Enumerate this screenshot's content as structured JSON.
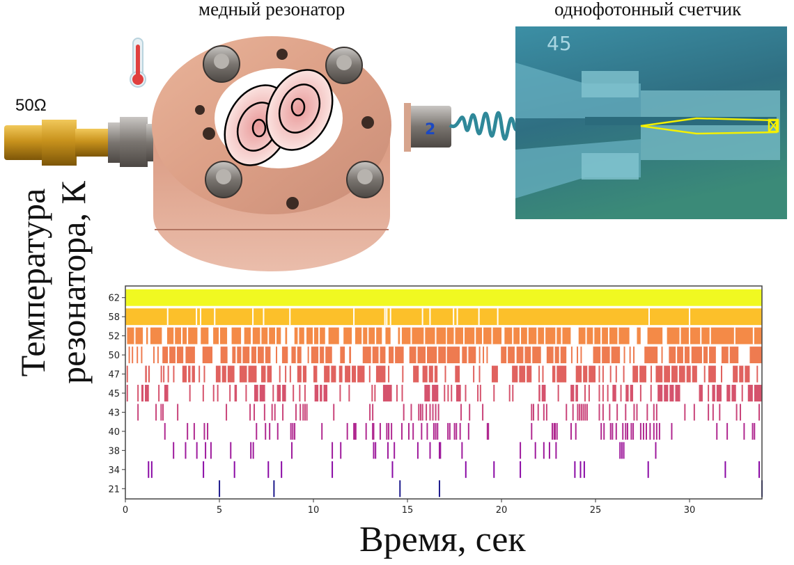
{
  "figure": {
    "resonator_title": "медный резонатор",
    "counter_title": "однофотонный счетчик",
    "impedance_label": "50Ω",
    "connector_number": "2",
    "chip_number": "45",
    "icons": [
      "thermometer-icon",
      "photon-wave-icon"
    ]
  },
  "chart_data": {
    "type": "raster",
    "xlabel": "Время, сек",
    "ylabel_lines": [
      "Температура",
      "резонатора, К"
    ],
    "xlim": [
      0,
      33.85
    ],
    "xticks": [
      0,
      5,
      10,
      15,
      20,
      25,
      30
    ],
    "grid": false,
    "rows": [
      {
        "label": "62",
        "color": "#f0f921",
        "events": [
          [
            0,
            33.85
          ]
        ],
        "gaps": []
      },
      {
        "label": "58",
        "color": "#fcc02a",
        "events": [
          [
            0,
            33.85
          ]
        ],
        "gaps": [
          2.25,
          3.78,
          4.0,
          4.75,
          6.78,
          7.35,
          8.75,
          12.15,
          13.8,
          13.9,
          14.1,
          15.8,
          16.2,
          17.45,
          17.65,
          18.8,
          19.8,
          27.85,
          30.0
        ]
      },
      {
        "label": "52",
        "color": "#f48a47",
        "events": [
          [
            0.09,
            0.93
          ],
          [
            1.11,
            1.2
          ],
          [
            1.33,
            1.94
          ],
          [
            2.22,
            3.83
          ],
          [
            4.01,
            4.42
          ],
          [
            4.67,
            5.41
          ],
          [
            5.65,
            6.15
          ],
          [
            6.32,
            6.67
          ],
          [
            6.77,
            8.27
          ],
          [
            8.5,
            8.6
          ],
          [
            8.99,
            9.51
          ],
          [
            9.63,
            10.62
          ],
          [
            10.8,
            11.36
          ],
          [
            11.6,
            12.04
          ],
          [
            12.22,
            13.64
          ],
          [
            13.83,
            14.1
          ],
          [
            14.5,
            14.6
          ],
          [
            14.7,
            17.04
          ],
          [
            17.1,
            20.0
          ],
          [
            20.16,
            23.68
          ],
          [
            24.1,
            26.8
          ],
          [
            27.2,
            27.4
          ],
          [
            27.76,
            28.56
          ],
          [
            28.8,
            33.85
          ]
        ],
        "gaps": [
          0.5,
          2.6,
          3.0,
          3.3,
          5.0,
          7.2,
          7.6,
          8.0,
          9.2,
          10.0,
          10.3,
          12.6,
          12.9,
          13.3,
          15.2,
          15.9,
          16.5,
          17.5,
          18.0,
          18.6,
          19.0,
          19.5,
          20.6,
          21.0,
          21.4,
          21.9,
          22.3,
          22.9,
          23.2,
          24.5,
          24.9,
          25.3,
          25.7,
          26.2,
          29.5,
          30.0,
          30.6,
          31.1,
          32.4,
          33.4
        ]
      },
      {
        "label": "50",
        "color": "#ee7b50",
        "events": [
          [
            0.17,
            0.21
          ],
          [
            0.34,
            0.38
          ],
          [
            0.6,
            0.64
          ],
          [
            0.83,
            0.87
          ],
          [
            1.48,
            1.52
          ],
          [
            1.7,
            1.75
          ],
          [
            1.97,
            3.08
          ],
          [
            3.2,
            3.7
          ],
          [
            4.1,
            4.63
          ],
          [
            5.06,
            5.43
          ],
          [
            5.68,
            6.6
          ],
          [
            6.7,
            7.72
          ],
          [
            8.0,
            8.04
          ],
          [
            8.33,
            8.64
          ],
          [
            8.83,
            9.36
          ],
          [
            9.69,
            9.73
          ],
          [
            9.88,
            10.99
          ],
          [
            11.42,
            11.67
          ],
          [
            11.9,
            12.0
          ],
          [
            12.62,
            13.83
          ],
          [
            14.0,
            14.8
          ],
          [
            15.1,
            17.04
          ],
          [
            17.1,
            17.78
          ],
          [
            17.9,
            18.64
          ],
          [
            18.8,
            18.85
          ],
          [
            19.0,
            19.05
          ],
          [
            19.2,
            19.25
          ],
          [
            19.97,
            20.7
          ],
          [
            20.8,
            22.1
          ],
          [
            22.4,
            23.45
          ],
          [
            23.7,
            23.75
          ],
          [
            24.0,
            24.05
          ],
          [
            24.2,
            24.25
          ],
          [
            24.87,
            26.3
          ],
          [
            26.5,
            26.55
          ],
          [
            26.8,
            26.85
          ],
          [
            27.0,
            27.05
          ],
          [
            27.6,
            28.3
          ],
          [
            28.5,
            28.55
          ],
          [
            28.9,
            30.0
          ],
          [
            30.1,
            31.4
          ],
          [
            31.7,
            32.6
          ],
          [
            33.2,
            33.85
          ]
        ],
        "gaps": [
          2.3,
          2.7,
          5.9,
          6.2,
          7.0,
          7.4,
          9.1,
          10.3,
          10.6,
          13.1,
          13.5,
          14.3,
          15.5,
          16.0,
          16.6,
          18.2,
          20.3,
          21.2,
          21.6,
          22.8,
          23.1,
          25.3,
          25.8,
          29.3,
          29.7,
          30.7,
          31.0,
          32.1
        ]
      },
      {
        "label": "47",
        "color": "#e0625f",
        "events": [
          0.1,
          [
            1.05,
            1.3
          ],
          1.91,
          2.04,
          2.28,
          2.57,
          [
            3.03,
            3.7
          ],
          3.93,
          4.2,
          [
            4.81,
            5.8
          ],
          [
            6.07,
            6.98
          ],
          [
            7.22,
            7.78
          ],
          8.21,
          8.52,
          8.77,
          [
            9.14,
            9.63
          ],
          [
            10.0,
            10.2
          ],
          [
            10.56,
            11.2
          ],
          [
            11.36,
            11.54
          ],
          [
            11.67,
            12.72
          ],
          12.99,
          [
            13.33,
            13.83
          ],
          14.0,
          14.75,
          [
            15.3,
            15.6
          ],
          [
            15.8,
            16.6
          ],
          [
            16.98,
            17.05
          ],
          [
            17.53,
            17.78
          ],
          18.52,
          18.83,
          [
            19.48,
            19.81
          ],
          [
            20.56,
            21.6
          ],
          22.0,
          22.2,
          [
            22.7,
            23.45
          ],
          [
            23.95,
            25.0
          ],
          25.2,
          25.4,
          25.8,
          26.1,
          26.5,
          [
            26.97,
            27.7
          ],
          27.96,
          [
            28.2,
            30.4
          ],
          30.8,
          [
            31.0,
            31.4
          ],
          31.7,
          [
            32.3,
            33.2
          ],
          33.6
        ],
        "gaps": [
          1.18,
          3.3,
          3.5,
          5.1,
          5.4,
          6.5,
          7.5,
          9.4,
          10.9,
          12.0,
          12.3,
          15.0,
          16.1,
          16.4,
          20.9,
          21.3,
          22.9,
          24.3,
          24.6,
          27.3,
          28.6,
          29.0,
          29.4,
          29.8,
          30.1,
          32.6,
          32.9
        ]
      },
      {
        "label": "45",
        "color": "#d5536d",
        "events": [
          0.1,
          0.67,
          [
            0.85,
            1.25
          ],
          1.78,
          [
            2.07,
            2.28
          ],
          3.43,
          4.14,
          4.69,
          4.91,
          5.56,
          [
            5.8,
            5.93
          ],
          6.42,
          [
            6.85,
            7.43
          ],
          7.86,
          [
            8.06,
            8.54
          ],
          8.93,
          9.27,
          9.55,
          [
            10.06,
            10.74
          ],
          11.42,
          11.9,
          13.12,
          13.27,
          [
            13.7,
            14.17
          ],
          14.44,
          14.72,
          [
            15.9,
            16.2
          ],
          [
            16.3,
            16.64
          ],
          16.97,
          17.16,
          17.34,
          [
            17.59,
            17.84
          ],
          18.09,
          18.74,
          18.88,
          19.6,
          20.43,
          20.6,
          [
            21.97,
            22.35
          ],
          23.02,
          [
            23.67,
            24.07
          ],
          24.44,
          24.66,
          25.2,
          25.4,
          25.65,
          [
            25.9,
            26.1
          ],
          26.35,
          [
            26.6,
            27.0
          ],
          27.4,
          27.95,
          [
            28.3,
            29.5
          ],
          [
            30.5,
            30.7
          ],
          31.0,
          [
            31.2,
            31.7
          ],
          [
            31.97,
            32.47
          ],
          32.8,
          [
            33.1,
            33.85
          ]
        ],
        "gaps": [
          1.0,
          7.1,
          8.3,
          10.3,
          10.5,
          22.1,
          23.9,
          26.8,
          28.6,
          28.9,
          29.2,
          31.4,
          32.2,
          33.4
        ]
      },
      {
        "label": "43",
        "color": "#c9447a",
        "events": [
          0.67,
          1.63,
          1.9,
          2.0,
          2.78,
          5.37,
          6.63,
          6.85,
          7.4,
          7.8,
          7.95,
          8.37,
          9.07,
          9.3,
          9.45,
          9.55,
          9.65,
          11.08,
          13.0,
          13.15,
          14.8,
          15.2,
          15.6,
          15.7,
          15.8,
          16.0,
          16.2,
          16.35,
          16.5,
          16.65,
          17.85,
          18.3,
          19.0,
          21.6,
          21.7,
          21.95,
          22.25,
          22.4,
          23.45,
          23.8,
          24.05,
          24.15,
          24.25,
          24.35,
          24.45,
          24.55,
          25.2,
          25.4,
          25.75,
          26.15,
          26.6,
          27.05,
          27.2,
          27.75,
          28.1,
          28.25,
          29.75,
          30.25,
          31.0,
          31.25,
          31.6,
          32.5,
          32.7,
          33.7
        ],
        "gaps": []
      },
      {
        "label": "40",
        "color": "#b02990",
        "events": [
          2.1,
          3.3,
          3.66,
          4.2,
          4.37,
          6.97,
          7.45,
          7.67,
          8.1,
          8.8,
          8.9,
          9.0,
          10.45,
          11.8,
          12.15,
          12.2,
          12.25,
          12.8,
          13.15,
          13.2,
          13.55,
          13.9,
          14.0,
          14.15,
          14.7,
          15.07,
          15.3,
          15.75,
          16.05,
          16.4,
          16.5,
          16.6,
          17.15,
          17.25,
          17.5,
          17.6,
          17.8,
          18.25,
          19.25,
          19.3,
          21.6,
          22.7,
          22.8,
          22.85,
          22.95,
          23.7,
          23.95,
          25.3,
          25.45,
          25.8,
          25.9,
          26.1,
          26.45,
          26.6,
          26.7,
          26.9,
          27.0,
          27.4,
          27.55,
          27.7,
          27.9,
          28.1,
          28.25,
          28.4,
          29.05,
          31.45,
          32.0,
          32.9,
          33.35,
          33.45
        ],
        "gaps": []
      },
      {
        "label": "38",
        "color": "#9e1a9c",
        "events": [
          2.56,
          3.2,
          3.8,
          4.26,
          4.55,
          5.6,
          6.67,
          6.8,
          8.85,
          11.0,
          11.45,
          13.2,
          13.3,
          13.96,
          14.3,
          15.55,
          16.2,
          16.7,
          16.75,
          17.9,
          21.0,
          21.8,
          22.25,
          22.55,
          22.9,
          26.3,
          26.4,
          26.5,
          28.2
        ],
        "gaps": []
      },
      {
        "label": "34",
        "color": "#8a0aa5",
        "events": [
          1.23,
          1.4,
          4.15,
          5.8,
          7.6,
          8.3,
          11.0,
          14.2,
          18.1,
          19.6,
          21.0,
          23.9,
          24.2,
          24.4,
          27.8,
          31.9,
          33.7
        ],
        "gaps": []
      },
      {
        "label": "21",
        "color": "#1e1b8c",
        "events": [
          5.0,
          7.9,
          14.6,
          16.7,
          33.85
        ],
        "gaps": []
      }
    ]
  }
}
